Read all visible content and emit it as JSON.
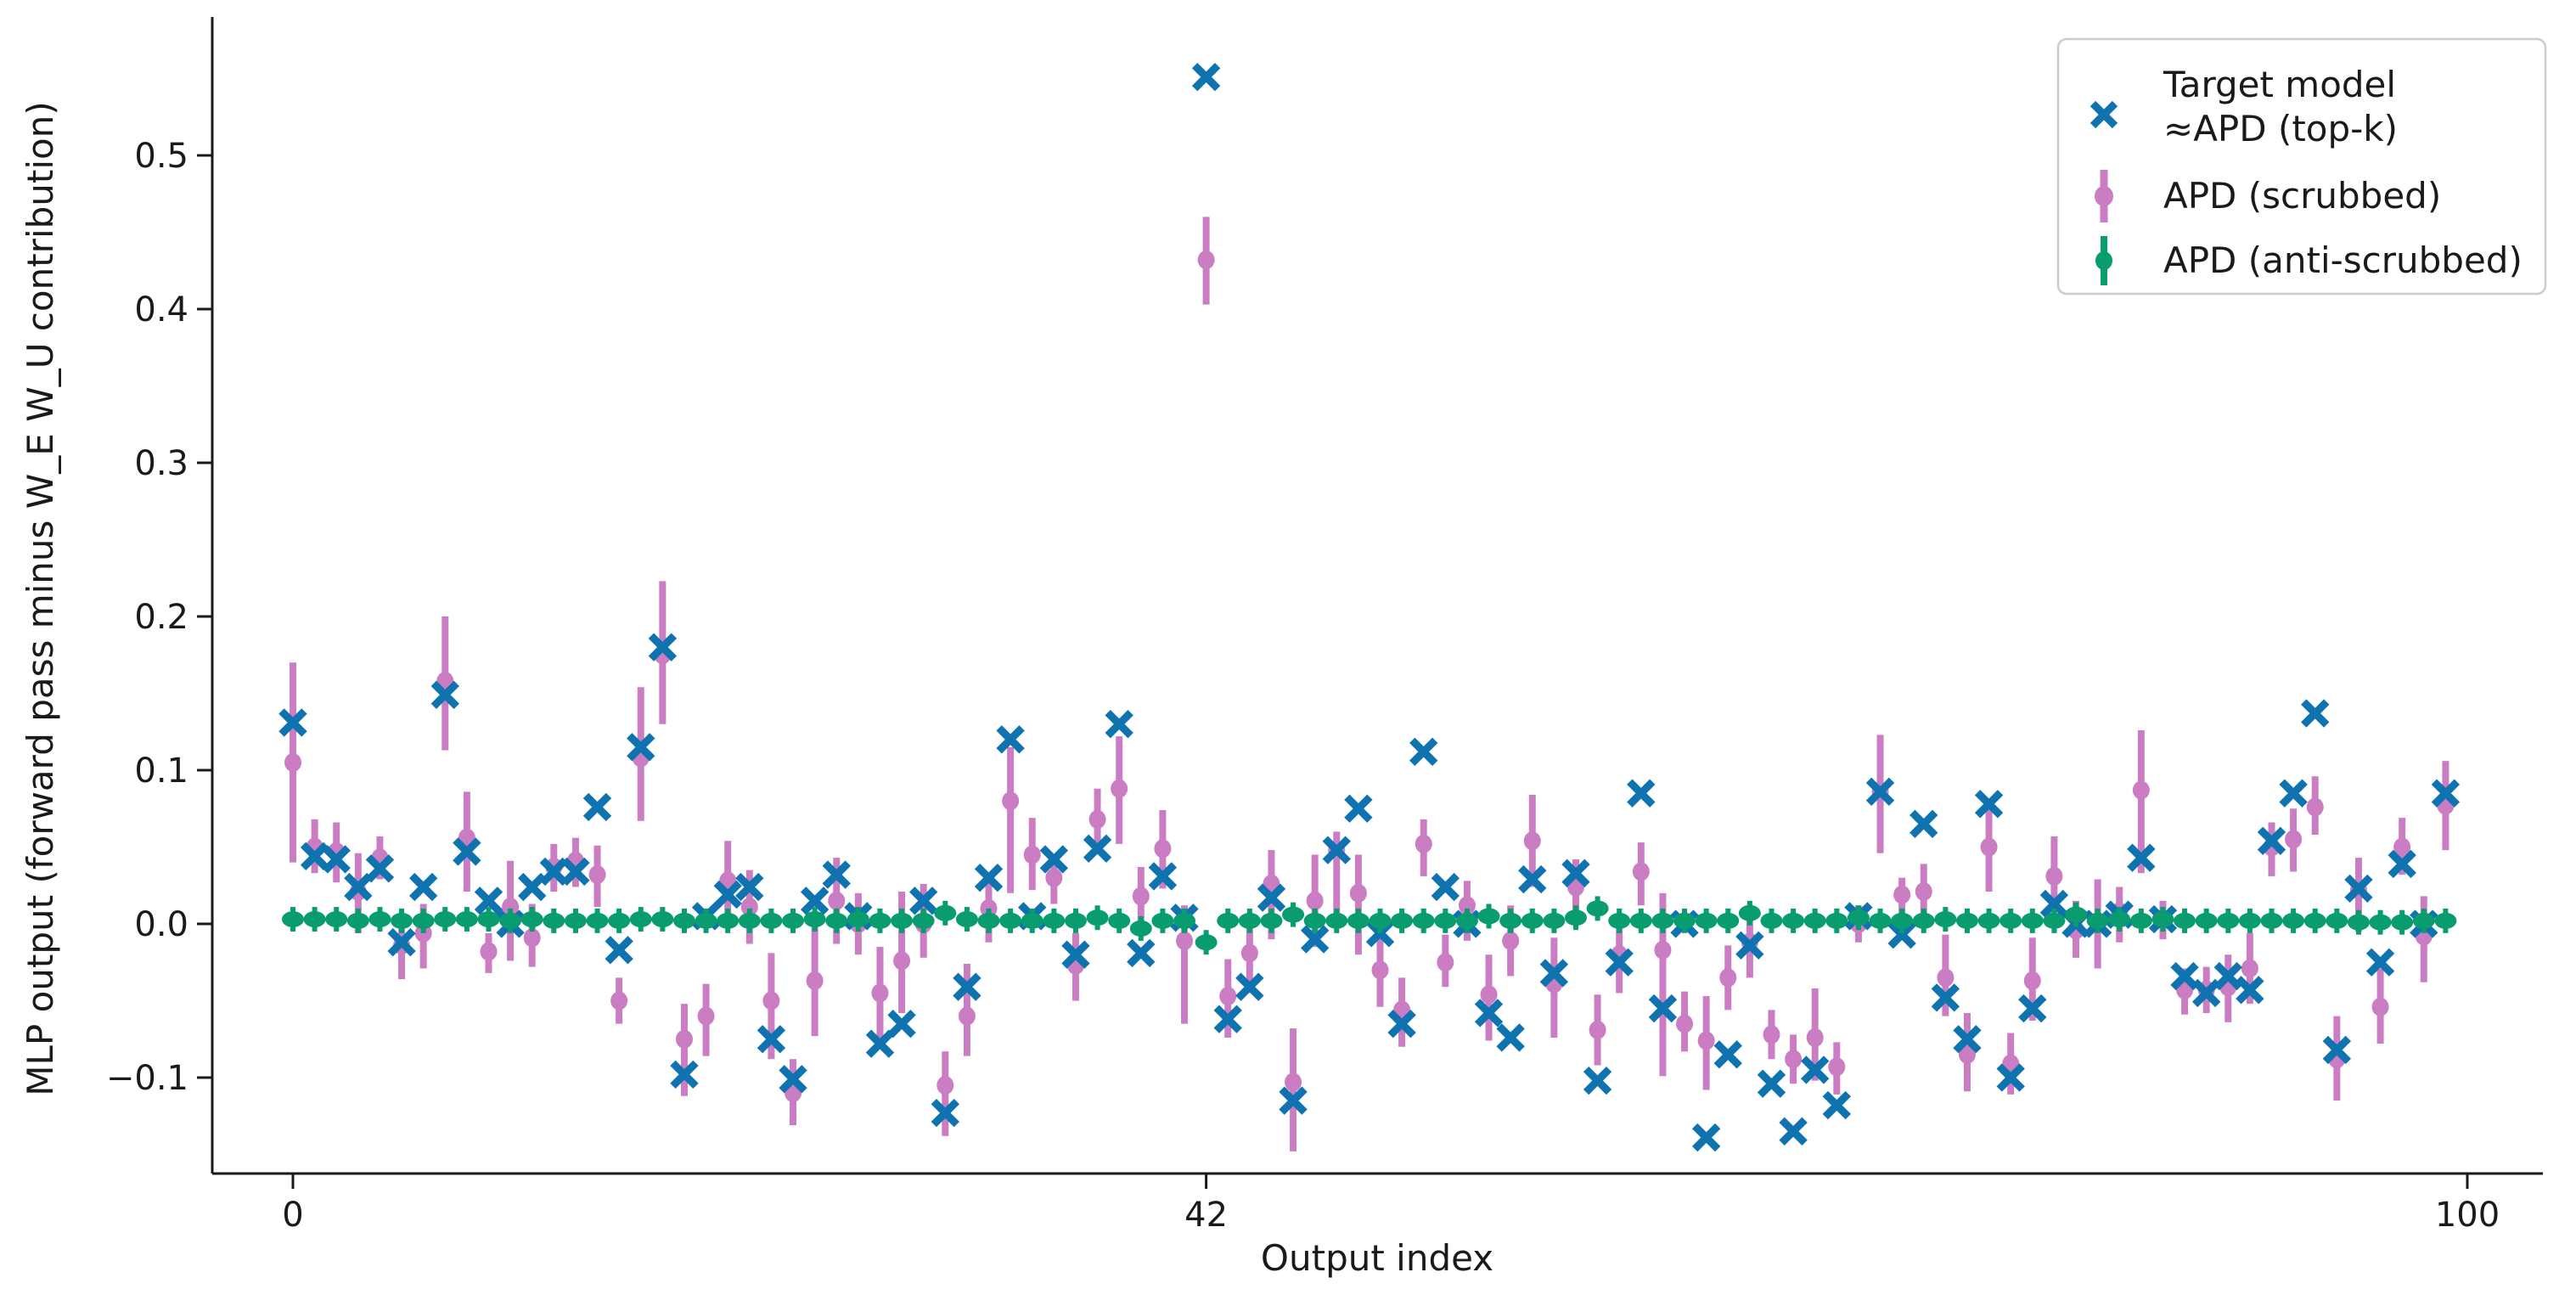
{
  "chart_data": {
    "type": "scatter",
    "title": "",
    "xlabel": "Output index",
    "ylabel": "MLP output (forward pass minus W_E W_U contribution)",
    "x_ticks": [
      0,
      42,
      100
    ],
    "y_ticks": [
      -0.1,
      0.0,
      0.1,
      0.2,
      0.3,
      0.4,
      0.5
    ],
    "xlim": [
      -3.7,
      103.3
    ],
    "ylim": [
      -0.163,
      0.585
    ],
    "grid": false,
    "legend_position": "upper right",
    "colors": {
      "target": "#0f73b0",
      "scrubbed": "#ca7dc2",
      "anti_scrubbed": "#089c6e"
    },
    "legend": {
      "items": [
        {
          "label_line1": "Target model",
          "label_line2": "≈APD (top-k)",
          "marker": "x-marker"
        },
        {
          "label_line1": "APD (scrubbed)",
          "label_line2": "",
          "marker": "errorbar-marker"
        },
        {
          "label_line1": "APD (anti-scrubbed)",
          "label_line2": "",
          "marker": "errorbar-marker"
        }
      ]
    },
    "x": [
      0,
      1,
      2,
      3,
      4,
      5,
      6,
      7,
      8,
      9,
      10,
      11,
      12,
      13,
      14,
      15,
      16,
      17,
      18,
      19,
      20,
      21,
      22,
      23,
      24,
      25,
      26,
      27,
      28,
      29,
      30,
      31,
      32,
      33,
      34,
      35,
      36,
      37,
      38,
      39,
      40,
      41,
      42,
      43,
      44,
      45,
      46,
      47,
      48,
      49,
      50,
      51,
      52,
      53,
      54,
      55,
      56,
      57,
      58,
      59,
      60,
      61,
      62,
      63,
      64,
      65,
      66,
      67,
      68,
      69,
      70,
      71,
      72,
      73,
      74,
      75,
      76,
      77,
      78,
      79,
      80,
      81,
      82,
      83,
      84,
      85,
      86,
      87,
      88,
      89,
      90,
      91,
      92,
      93,
      94,
      95,
      96,
      97,
      98,
      99
    ],
    "series": [
      {
        "name": "Target model ≈APD (top-k)",
        "marker": "X",
        "values": [
          0.131,
          0.044,
          0.042,
          0.024,
          0.036,
          -0.012,
          0.024,
          0.149,
          0.047,
          0.015,
          0.0,
          0.024,
          0.034,
          0.034,
          0.076,
          -0.017,
          0.115,
          0.18,
          -0.098,
          0.005,
          0.019,
          0.024,
          -0.075,
          -0.101,
          0.015,
          0.032,
          0.005,
          -0.078,
          -0.065,
          0.015,
          -0.123,
          -0.041,
          0.03,
          0.12,
          0.005,
          0.042,
          -0.02,
          0.049,
          0.13,
          -0.019,
          0.031,
          0.004,
          0.551,
          -0.062,
          -0.041,
          0.017,
          -0.115,
          -0.01,
          0.048,
          0.075,
          -0.006,
          -0.065,
          0.112,
          0.024,
          0.0,
          -0.058,
          -0.074,
          0.029,
          -0.032,
          0.033,
          -0.102,
          -0.025,
          0.085,
          -0.055,
          0.0,
          -0.139,
          -0.085,
          -0.014,
          -0.104,
          -0.135,
          -0.095,
          -0.118,
          0.005,
          0.086,
          -0.007,
          0.065,
          -0.048,
          -0.075,
          0.078,
          -0.1,
          -0.055,
          0.013,
          0.0,
          0.0,
          0.006,
          0.043,
          0.003,
          -0.034,
          -0.045,
          -0.034,
          -0.043,
          0.054,
          0.085,
          0.137,
          -0.082,
          0.023,
          -0.025,
          0.039,
          0.0,
          0.085
        ]
      },
      {
        "name": "APD (scrubbed)",
        "marker": "circle-errorbar",
        "values": [
          0.105,
          0.05,
          0.047,
          0.021,
          0.043,
          -0.014,
          -0.006,
          0.158,
          0.056,
          -0.018,
          0.011,
          -0.009,
          0.037,
          0.041,
          0.032,
          -0.05,
          0.108,
          0.175,
          -0.075,
          -0.06,
          0.028,
          0.011,
          -0.05,
          -0.11,
          -0.037,
          0.015,
          0.0,
          -0.045,
          -0.024,
          0.0,
          -0.105,
          -0.06,
          0.01,
          0.08,
          0.045,
          0.03,
          -0.027,
          0.068,
          0.088,
          0.018,
          0.049,
          -0.011,
          0.432,
          -0.047,
          -0.019,
          0.026,
          -0.103,
          0.015,
          0.048,
          0.02,
          -0.03,
          -0.056,
          0.052,
          -0.025,
          0.012,
          -0.046,
          -0.011,
          0.054,
          -0.039,
          0.024,
          -0.069,
          -0.02,
          0.034,
          -0.017,
          -0.065,
          -0.076,
          -0.035,
          -0.012,
          -0.072,
          -0.088,
          -0.074,
          -0.093,
          0.0,
          0.086,
          0.019,
          0.021,
          -0.035,
          -0.085,
          0.05,
          -0.091,
          -0.037,
          0.031,
          -0.004,
          0.0,
          0.008,
          0.087,
          0.003,
          -0.043,
          -0.043,
          -0.041,
          -0.029,
          0.05,
          0.055,
          0.076,
          -0.088,
          0.022,
          -0.054,
          0.05,
          -0.008,
          0.077
        ],
        "lo": [
          0.04,
          0.033,
          0.027,
          -0.006,
          0.029,
          -0.036,
          -0.029,
          0.113,
          0.021,
          -0.032,
          -0.024,
          -0.028,
          0.021,
          0.024,
          0.011,
          -0.065,
          0.067,
          0.13,
          -0.112,
          -0.086,
          0.0,
          -0.013,
          -0.088,
          -0.131,
          -0.073,
          -0.013,
          -0.02,
          -0.077,
          -0.058,
          -0.022,
          -0.138,
          -0.086,
          -0.012,
          0.02,
          0.022,
          0.013,
          -0.05,
          0.049,
          0.052,
          -0.002,
          0.023,
          -0.065,
          0.403,
          -0.074,
          -0.045,
          -0.01,
          -0.148,
          -0.015,
          0.002,
          -0.02,
          -0.054,
          -0.08,
          0.031,
          -0.041,
          -0.011,
          -0.076,
          -0.034,
          0.024,
          -0.074,
          0.003,
          -0.092,
          -0.045,
          0.012,
          -0.099,
          -0.083,
          -0.108,
          -0.056,
          -0.035,
          -0.088,
          -0.104,
          -0.102,
          -0.111,
          -0.012,
          0.046,
          0.007,
          0.005,
          -0.06,
          -0.109,
          0.021,
          -0.111,
          -0.063,
          0.008,
          -0.022,
          -0.029,
          -0.012,
          0.033,
          -0.01,
          -0.059,
          -0.058,
          -0.064,
          -0.052,
          0.031,
          0.034,
          0.058,
          -0.115,
          -0.005,
          -0.078,
          0.032,
          -0.038,
          0.048
        ],
        "hi": [
          0.17,
          0.068,
          0.066,
          0.046,
          0.057,
          0.003,
          0.013,
          0.2,
          0.086,
          -0.006,
          0.041,
          0.013,
          0.052,
          0.056,
          0.051,
          -0.035,
          0.154,
          0.223,
          -0.052,
          -0.039,
          0.054,
          0.035,
          -0.019,
          -0.088,
          0.0,
          0.043,
          0.02,
          -0.015,
          0.021,
          0.026,
          -0.083,
          -0.026,
          0.03,
          0.115,
          0.069,
          0.042,
          -0.006,
          0.088,
          0.122,
          0.037,
          0.074,
          0.012,
          0.46,
          -0.023,
          0.003,
          0.048,
          -0.068,
          0.045,
          0.06,
          0.045,
          -0.006,
          -0.035,
          0.068,
          -0.007,
          0.028,
          -0.02,
          0.012,
          0.084,
          -0.009,
          0.042,
          -0.046,
          0.005,
          0.053,
          0.02,
          -0.044,
          -0.047,
          -0.014,
          0.005,
          -0.056,
          -0.072,
          -0.042,
          -0.077,
          0.012,
          0.123,
          0.03,
          0.039,
          -0.007,
          -0.058,
          0.075,
          -0.071,
          -0.009,
          0.057,
          0.015,
          0.029,
          0.024,
          0.126,
          0.015,
          -0.029,
          -0.028,
          -0.02,
          -0.006,
          0.066,
          0.075,
          0.096,
          -0.06,
          0.043,
          -0.029,
          0.069,
          0.018,
          0.106
        ]
      },
      {
        "name": "APD (anti-scrubbed)",
        "marker": "circle-errorbar",
        "values": [
          0.003,
          0.003,
          0.003,
          0.002,
          0.003,
          0.002,
          0.002,
          0.003,
          0.003,
          0.003,
          0.002,
          0.003,
          0.002,
          0.002,
          0.002,
          0.002,
          0.003,
          0.003,
          0.002,
          0.002,
          0.002,
          0.002,
          0.002,
          0.002,
          0.003,
          0.002,
          0.003,
          0.002,
          0.002,
          0.002,
          0.007,
          0.003,
          0.002,
          0.002,
          0.002,
          0.002,
          0.002,
          0.004,
          0.002,
          -0.003,
          0.002,
          0.002,
          -0.012,
          0.002,
          0.002,
          0.002,
          0.006,
          0.002,
          0.002,
          0.002,
          0.002,
          0.002,
          0.002,
          0.002,
          0.002,
          0.005,
          0.002,
          0.002,
          0.002,
          0.004,
          0.01,
          0.002,
          0.002,
          0.002,
          0.002,
          0.002,
          0.002,
          0.007,
          0.002,
          0.002,
          0.002,
          0.002,
          0.004,
          0.002,
          0.002,
          0.002,
          0.003,
          0.002,
          0.002,
          0.002,
          0.002,
          0.002,
          0.006,
          0.002,
          0.003,
          0.002,
          0.003,
          0.002,
          0.002,
          0.002,
          0.002,
          0.002,
          0.002,
          0.002,
          0.002,
          0.001,
          0.001,
          0.001,
          0.002,
          0.002
        ],
        "err": 0.008
      }
    ]
  }
}
